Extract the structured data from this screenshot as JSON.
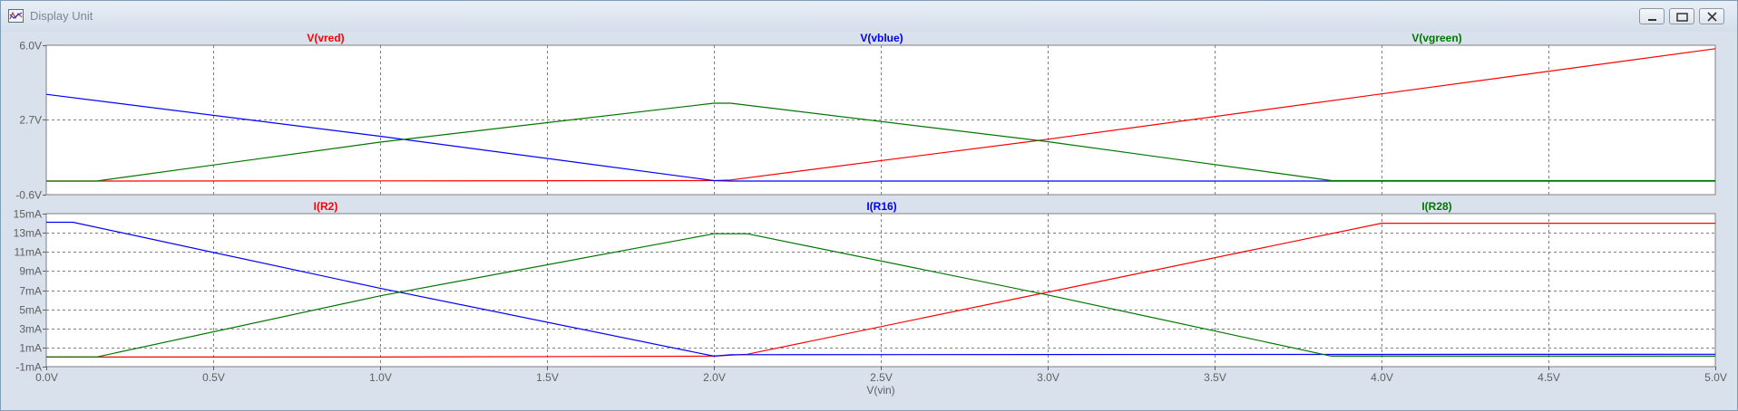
{
  "window": {
    "title": "Display Unit",
    "buttons": [
      "minimize",
      "maximize",
      "close"
    ]
  },
  "chart_data": [
    {
      "type": "line",
      "pane": "top",
      "ylim": [
        -0.6,
        6.0
      ],
      "yticks": [
        -0.6,
        2.7,
        6.0
      ],
      "ytick_labels": [
        "-0.6V",
        "2.7V",
        "6.0V"
      ],
      "grid": true,
      "series": [
        {
          "name": "V(vred)",
          "color": "#ff0000",
          "x": [
            0,
            0.15,
            1.0,
            2.0,
            2.05,
            3.0,
            4.0,
            5.0
          ],
          "y": [
            0.0,
            0.0,
            0.01,
            0.02,
            0.05,
            1.85,
            3.85,
            5.85
          ]
        },
        {
          "name": "V(vblue)",
          "color": "#0000ff",
          "x": [
            0,
            1.0,
            2.0,
            2.05,
            5.0
          ],
          "y": [
            3.83,
            1.98,
            0.02,
            0.0,
            0.0
          ]
        },
        {
          "name": "V(vgreen)",
          "color": "#007700",
          "x": [
            0,
            0.15,
            1.0,
            2.0,
            2.05,
            3.0,
            3.85,
            5.0
          ],
          "y": [
            0.0,
            0.0,
            1.72,
            3.44,
            3.44,
            1.74,
            0.02,
            0.02
          ]
        }
      ]
    },
    {
      "type": "line",
      "pane": "bottom",
      "ylim": [
        -1,
        15
      ],
      "yticks": [
        -1,
        1,
        3,
        5,
        7,
        9,
        11,
        13,
        15
      ],
      "ytick_labels": [
        "-1mA",
        "1mA",
        "3mA",
        "5mA",
        "7mA",
        "9mA",
        "11mA",
        "13mA",
        "15mA"
      ],
      "xlim": [
        0,
        5.0
      ],
      "xticks": [
        0,
        0.5,
        1.0,
        1.5,
        2.0,
        2.5,
        3.0,
        3.5,
        4.0,
        4.5,
        5.0
      ],
      "xtick_labels": [
        "0.0V",
        "0.5V",
        "1.0V",
        "1.5V",
        "2.0V",
        "2.5V",
        "3.0V",
        "3.5V",
        "4.0V",
        "4.5V",
        "5.0V"
      ],
      "xlabel": "V(vin)",
      "grid": true,
      "series": [
        {
          "name": "I(R2)",
          "color": "#ff0000",
          "x": [
            0,
            1.0,
            2.0,
            2.1,
            4.0,
            5.0
          ],
          "y": [
            0.0,
            0.0,
            0.1,
            0.3,
            14.0,
            14.0
          ]
        },
        {
          "name": "I(R16)",
          "color": "#0000ff",
          "x": [
            0,
            0.08,
            1.0,
            2.0,
            2.05,
            5.0
          ],
          "y": [
            14.1,
            14.1,
            7.2,
            0.1,
            0.25,
            0.3
          ]
        },
        {
          "name": "I(R28)",
          "color": "#007700",
          "x": [
            0,
            0.15,
            1.0,
            2.0,
            2.1,
            3.0,
            3.85,
            5.0
          ],
          "y": [
            0.0,
            0.0,
            6.4,
            12.9,
            12.9,
            6.5,
            0.1,
            0.1
          ]
        }
      ]
    }
  ]
}
